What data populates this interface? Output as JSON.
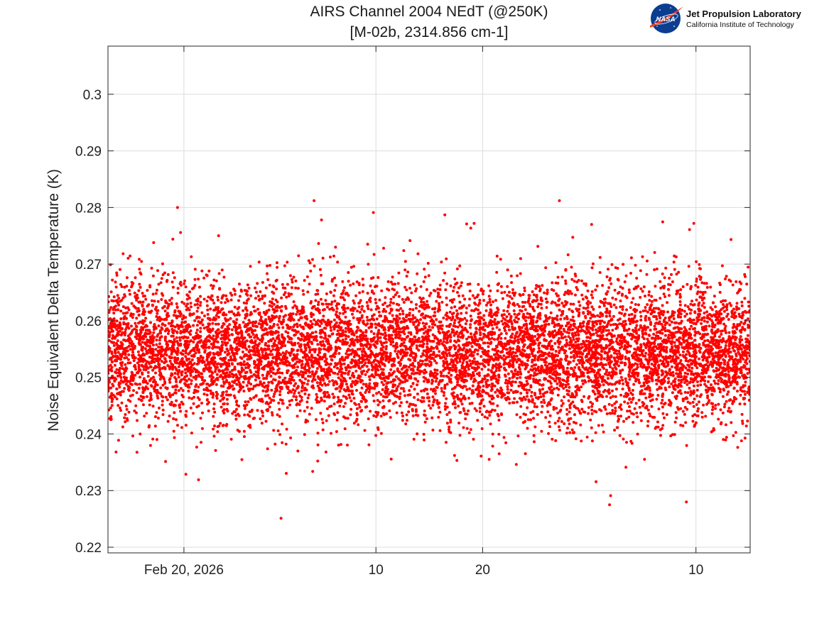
{
  "chart_data": {
    "type": "scatter",
    "title": [
      "AIRS Channel 2004 NEdT (@250K)",
      "[M-02b, 2314.856 cm-1]"
    ],
    "xlabel": "",
    "ylabel": "Noise Equivalent Delta Temperature (K)",
    "x_unit": "days since Feb 20, 2026",
    "xlim": [
      -3.56,
      26.54
    ],
    "ylim": [
      0.219,
      0.3085
    ],
    "yticks": [
      {
        "value": 0.22,
        "label": "0.22"
      },
      {
        "value": 0.23,
        "label": "0.23"
      },
      {
        "value": 0.24,
        "label": "0.24"
      },
      {
        "value": 0.25,
        "label": "0.25"
      },
      {
        "value": 0.26,
        "label": "0.26"
      },
      {
        "value": 0.27,
        "label": "0.27"
      },
      {
        "value": 0.28,
        "label": "0.28"
      },
      {
        "value": 0.29,
        "label": "0.29"
      },
      {
        "value": 0.3,
        "label": "0.3"
      }
    ],
    "xticks": [
      {
        "value": 0,
        "label": "Feb 20, 2026"
      },
      {
        "value": 9,
        "label": "10"
      },
      {
        "value": 14,
        "label": "20"
      },
      {
        "value": 24,
        "label": "10"
      }
    ],
    "grid": true,
    "series": [
      {
        "name": "NEdT",
        "color": "#ff0000",
        "point_count": 9000,
        "core": {
          "mean": 0.2545,
          "sd": 0.0062,
          "clip_low": 0.2305,
          "clip_high": 0.2775
        },
        "outliers": [
          {
            "x": -0.3,
            "y": 0.28
          },
          {
            "x": 6.1,
            "y": 0.2812
          },
          {
            "x": 6.45,
            "y": 0.2778
          },
          {
            "x": 8.88,
            "y": 0.2791
          },
          {
            "x": 12.23,
            "y": 0.2787
          },
          {
            "x": 17.6,
            "y": 0.2812
          },
          {
            "x": 4.55,
            "y": 0.2251
          },
          {
            "x": 20.0,
            "y": 0.2291
          },
          {
            "x": 19.95,
            "y": 0.2275
          },
          {
            "x": 23.55,
            "y": 0.228
          },
          {
            "x": 13.25,
            "y": 0.2771
          },
          {
            "x": 13.6,
            "y": 0.2772
          },
          {
            "x": 23.9,
            "y": 0.2772
          },
          {
            "x": 23.7,
            "y": 0.2761
          }
        ]
      }
    ]
  },
  "branding": {
    "org_name": "Jet Propulsion Laboratory",
    "org_sub": "California Institute of Technology",
    "agency_logo_text": "NASA",
    "logo_blue": "#0b3d91",
    "logo_red": "#fc3d21"
  }
}
